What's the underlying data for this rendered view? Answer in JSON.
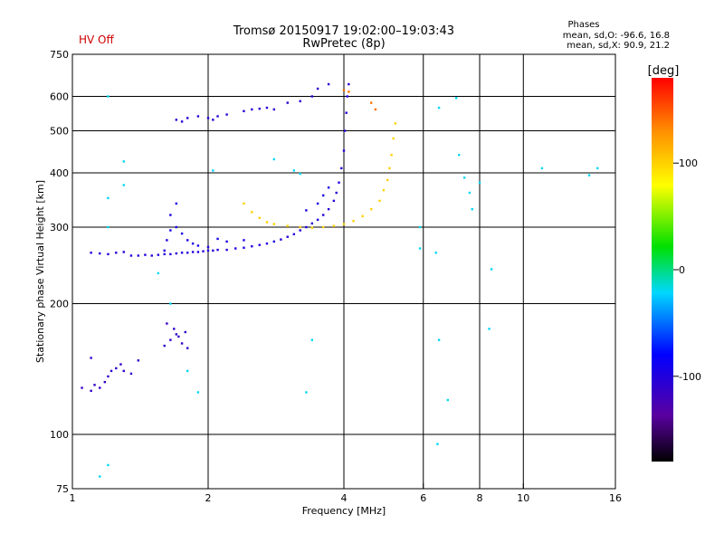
{
  "status_label": "HV Off",
  "header": {
    "title_line1": "Tromsø 20150917 19:02:00–19:03:43",
    "title_line2": "RwPretec (8p)"
  },
  "phase_stats": {
    "heading": "Phases",
    "o_line": "mean, sd,O: -96.6, 16.8",
    "x_line": "mean, sd,X:  90.9, 21.2"
  },
  "colorbar": {
    "unit_label": "[deg]",
    "ticks": [
      {
        "value": 100,
        "label": "100"
      },
      {
        "value": 0,
        "label": "0"
      },
      {
        "value": -100,
        "label": "-100"
      }
    ],
    "range": [
      -180,
      180
    ]
  },
  "chart_data": {
    "type": "scatter",
    "title": "Tromsø 20150917 19:02:00–19:03:43",
    "subtitle": "RwPretec (8p)",
    "xlabel": "Frequency [MHz]",
    "ylabel": "Stationary phase Virtual Height [km]",
    "xscale": "log",
    "yscale": "log",
    "xlim": [
      1,
      16
    ],
    "ylim": [
      75,
      750
    ],
    "x_ticks": [
      {
        "value": 1,
        "label": "1"
      },
      {
        "value": 2,
        "label": "2"
      },
      {
        "value": 4,
        "label": "4"
      },
      {
        "value": 6,
        "label": "6"
      },
      {
        "value": 8,
        "label": "8"
      },
      {
        "value": 10,
        "label": "10"
      },
      {
        "value": 16,
        "label": "16"
      }
    ],
    "y_ticks": [
      {
        "value": 75,
        "label": "75"
      },
      {
        "value": 100,
        "label": "100"
      },
      {
        "value": 200,
        "label": "200"
      },
      {
        "value": 300,
        "label": "300"
      },
      {
        "value": 400,
        "label": "400"
      },
      {
        "value": 500,
        "label": "500"
      },
      {
        "value": 600,
        "label": "600"
      },
      {
        "value": 750,
        "label": "750"
      }
    ],
    "x_gridlines": [
      2,
      4,
      6,
      8,
      10
    ],
    "y_gridlines": [
      100,
      200,
      300,
      400,
      500,
      600
    ],
    "color_scale": "phase_degrees",
    "series": [
      {
        "name": "O-mode F trace (blue)",
        "phase": -100,
        "points": [
          [
            1.1,
            262
          ],
          [
            1.15,
            261
          ],
          [
            1.2,
            260
          ],
          [
            1.25,
            262
          ],
          [
            1.3,
            263
          ],
          [
            1.35,
            258
          ],
          [
            1.4,
            258
          ],
          [
            1.45,
            259
          ],
          [
            1.5,
            258
          ],
          [
            1.55,
            259
          ],
          [
            1.6,
            260
          ],
          [
            1.65,
            260
          ],
          [
            1.7,
            261
          ],
          [
            1.75,
            262
          ],
          [
            1.8,
            262
          ],
          [
            1.85,
            263
          ],
          [
            1.9,
            263
          ],
          [
            1.95,
            264
          ],
          [
            2.0,
            265
          ],
          [
            2.05,
            265
          ],
          [
            2.1,
            266
          ],
          [
            2.2,
            266
          ],
          [
            2.3,
            268
          ],
          [
            2.4,
            269
          ],
          [
            2.5,
            271
          ],
          [
            2.6,
            273
          ],
          [
            2.7,
            275
          ],
          [
            2.8,
            278
          ],
          [
            2.9,
            281
          ],
          [
            3.0,
            285
          ],
          [
            3.1,
            289
          ],
          [
            3.2,
            295
          ],
          [
            3.3,
            300
          ],
          [
            3.4,
            306
          ],
          [
            3.5,
            312
          ],
          [
            3.6,
            320
          ],
          [
            3.7,
            330
          ],
          [
            3.8,
            345
          ],
          [
            3.85,
            360
          ],
          [
            3.9,
            380
          ],
          [
            3.95,
            410
          ],
          [
            4.0,
            450
          ],
          [
            4.02,
            500
          ],
          [
            4.05,
            550
          ],
          [
            4.07,
            600
          ],
          [
            4.1,
            640
          ]
        ]
      },
      {
        "name": "O-mode F second branch (blue)",
        "phase": -95,
        "points": [
          [
            1.6,
            265
          ],
          [
            1.62,
            280
          ],
          [
            1.65,
            295
          ],
          [
            1.7,
            300
          ],
          [
            1.75,
            290
          ],
          [
            1.8,
            280
          ],
          [
            1.85,
            275
          ],
          [
            1.9,
            272
          ],
          [
            2.0,
            270
          ],
          [
            2.1,
            282
          ],
          [
            2.2,
            278
          ],
          [
            2.4,
            280
          ],
          [
            1.65,
            320
          ],
          [
            1.7,
            340
          ],
          [
            3.3,
            328
          ],
          [
            3.5,
            340
          ],
          [
            3.6,
            355
          ],
          [
            3.7,
            370
          ]
        ]
      },
      {
        "name": "O-mode multiple echo (blue)",
        "phase": -105,
        "points": [
          [
            1.7,
            530
          ],
          [
            1.75,
            525
          ],
          [
            1.8,
            535
          ],
          [
            1.9,
            540
          ],
          [
            2.0,
            535
          ],
          [
            2.05,
            530
          ],
          [
            2.1,
            540
          ],
          [
            2.2,
            545
          ],
          [
            2.4,
            555
          ],
          [
            2.5,
            560
          ],
          [
            2.6,
            562
          ],
          [
            2.7,
            565
          ],
          [
            2.8,
            560
          ],
          [
            3.0,
            580
          ],
          [
            3.2,
            585
          ],
          [
            3.4,
            600
          ],
          [
            3.5,
            625
          ],
          [
            3.7,
            640
          ]
        ]
      },
      {
        "name": "O-mode E trace (blue)",
        "phase": -110,
        "points": [
          [
            1.05,
            128
          ],
          [
            1.1,
            126
          ],
          [
            1.12,
            130
          ],
          [
            1.15,
            128
          ],
          [
            1.18,
            132
          ],
          [
            1.2,
            136
          ],
          [
            1.22,
            140
          ],
          [
            1.25,
            142
          ],
          [
            1.28,
            145
          ],
          [
            1.3,
            140
          ],
          [
            1.35,
            138
          ],
          [
            1.4,
            148
          ],
          [
            1.1,
            150
          ],
          [
            1.6,
            160
          ],
          [
            1.65,
            165
          ],
          [
            1.7,
            170
          ],
          [
            1.75,
            162
          ],
          [
            1.8,
            158
          ],
          [
            1.62,
            180
          ],
          [
            1.68,
            175
          ],
          [
            1.72,
            168
          ],
          [
            1.78,
            172
          ]
        ]
      },
      {
        "name": "X-mode trace (yellow)",
        "phase": 100,
        "points": [
          [
            2.4,
            340
          ],
          [
            2.5,
            325
          ],
          [
            2.6,
            315
          ],
          [
            2.7,
            308
          ],
          [
            2.8,
            305
          ],
          [
            3.0,
            302
          ],
          [
            3.2,
            300
          ],
          [
            3.4,
            299
          ],
          [
            3.6,
            300
          ],
          [
            3.8,
            302
          ],
          [
            4.0,
            305
          ],
          [
            4.2,
            310
          ],
          [
            4.4,
            318
          ],
          [
            4.6,
            330
          ],
          [
            4.8,
            345
          ],
          [
            4.9,
            365
          ],
          [
            5.0,
            385
          ],
          [
            5.05,
            410
          ],
          [
            5.1,
            440
          ],
          [
            5.15,
            480
          ],
          [
            5.2,
            520
          ]
        ]
      },
      {
        "name": "X-mode upper segment (orange)",
        "phase": 140,
        "points": [
          [
            4.0,
            620
          ],
          [
            4.1,
            615
          ],
          [
            4.6,
            580
          ],
          [
            4.7,
            560
          ]
        ]
      },
      {
        "name": "Scattered echoes",
        "phase": -20,
        "points": [
          [
            1.2,
            600
          ],
          [
            1.3,
            425
          ],
          [
            1.3,
            375
          ],
          [
            1.2,
            350
          ],
          [
            1.2,
            300
          ],
          [
            1.55,
            235
          ],
          [
            1.65,
            200
          ],
          [
            1.8,
            140
          ],
          [
            1.9,
            125
          ],
          [
            2.05,
            405
          ],
          [
            2.8,
            430
          ],
          [
            3.1,
            405
          ],
          [
            3.2,
            398
          ],
          [
            3.4,
            165
          ],
          [
            3.3,
            125
          ],
          [
            5.9,
            300
          ],
          [
            5.9,
            268
          ],
          [
            6.5,
            565
          ],
          [
            6.4,
            262
          ],
          [
            6.5,
            165
          ],
          [
            6.45,
            95
          ],
          [
            6.8,
            120
          ],
          [
            7.1,
            595
          ],
          [
            7.2,
            440
          ],
          [
            7.4,
            390
          ],
          [
            7.6,
            360
          ],
          [
            7.7,
            330
          ],
          [
            8.0,
            380
          ],
          [
            8.5,
            240
          ],
          [
            8.4,
            175
          ],
          [
            11.0,
            410
          ],
          [
            14.0,
            395
          ],
          [
            14.6,
            410
          ],
          [
            1.2,
            85
          ],
          [
            1.15,
            80
          ]
        ]
      }
    ]
  }
}
